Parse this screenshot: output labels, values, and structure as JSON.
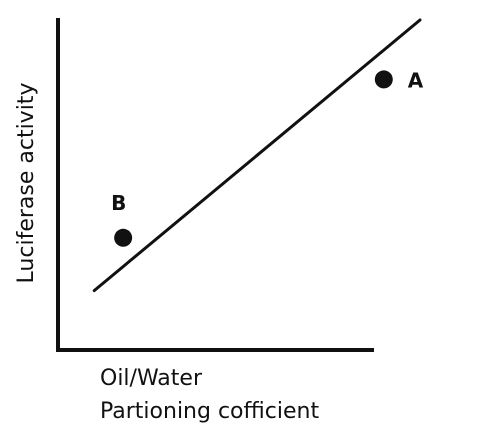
{
  "chart_data": {
    "type": "scatter",
    "title": "",
    "xlabel_line1": "Oil/Water",
    "xlabel_line2": "Partioning cofficient",
    "ylabel": "Luciferase activity",
    "grid": false,
    "legend": "none",
    "axis_ticks": "none",
    "points": [
      {
        "label": "A",
        "x": 0.9,
        "y": 0.82
      },
      {
        "label": "B",
        "x": 0.18,
        "y": 0.34
      }
    ],
    "trend_line": {
      "x": [
        0.1,
        1.0
      ],
      "y": [
        0.18,
        1.0
      ]
    },
    "xlim": [
      0,
      1
    ],
    "ylim": [
      0,
      1
    ]
  },
  "colors": {
    "ink": "#111111",
    "background": "#ffffff"
  }
}
